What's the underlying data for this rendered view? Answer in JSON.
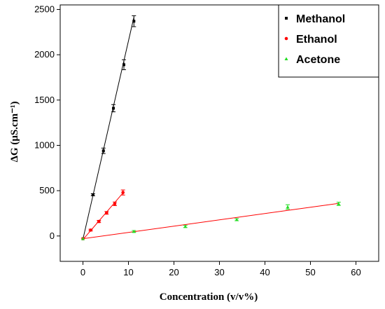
{
  "chart_data": {
    "type": "scatter",
    "title": "",
    "xlabel": "Concentration (v/v%)",
    "ylabel": "ΔG (μS.cm⁻¹)",
    "xlim": [
      -5,
      65
    ],
    "ylim": [
      -280,
      2550
    ],
    "xticks": [
      0,
      10,
      20,
      30,
      40,
      50,
      60
    ],
    "yticks": [
      0,
      500,
      1000,
      1500,
      2000,
      2500
    ],
    "grid": false,
    "legend_position": "top-right",
    "series": [
      {
        "name": "Methanol",
        "color": "#000000",
        "marker": "square",
        "x": [
          0,
          2.2,
          4.5,
          6.7,
          9.0,
          11.2
        ],
        "y": [
          -30,
          455,
          940,
          1410,
          1890,
          2370
        ],
        "yerr": [
          0,
          12,
          30,
          40,
          55,
          60
        ],
        "fit": {
          "x": [
            0,
            11.2
          ],
          "y": [
            -35,
            2415
          ]
        }
      },
      {
        "name": "Ethanol",
        "color": "#ff0000",
        "marker": "circle",
        "x": [
          0,
          1.7,
          3.5,
          5.2,
          7.0,
          8.8
        ],
        "y": [
          -30,
          65,
          160,
          255,
          355,
          480
        ],
        "yerr": [
          0,
          10,
          12,
          15,
          20,
          28
        ],
        "fit": {
          "x": [
            0,
            8.8
          ],
          "y": [
            -40,
            475
          ]
        }
      },
      {
        "name": "Acetone",
        "color": "#22dd22",
        "marker": "triangle",
        "x": [
          0,
          11.2,
          22.5,
          33.8,
          45.0,
          56.2
        ],
        "y": [
          -30,
          50,
          105,
          180,
          320,
          355
        ],
        "yerr": [
          0,
          10,
          12,
          12,
          25,
          18
        ],
        "fit": {
          "x": [
            0,
            56.2
          ],
          "y": [
            -30,
            360
          ],
          "color": "#ff0000"
        }
      }
    ]
  }
}
